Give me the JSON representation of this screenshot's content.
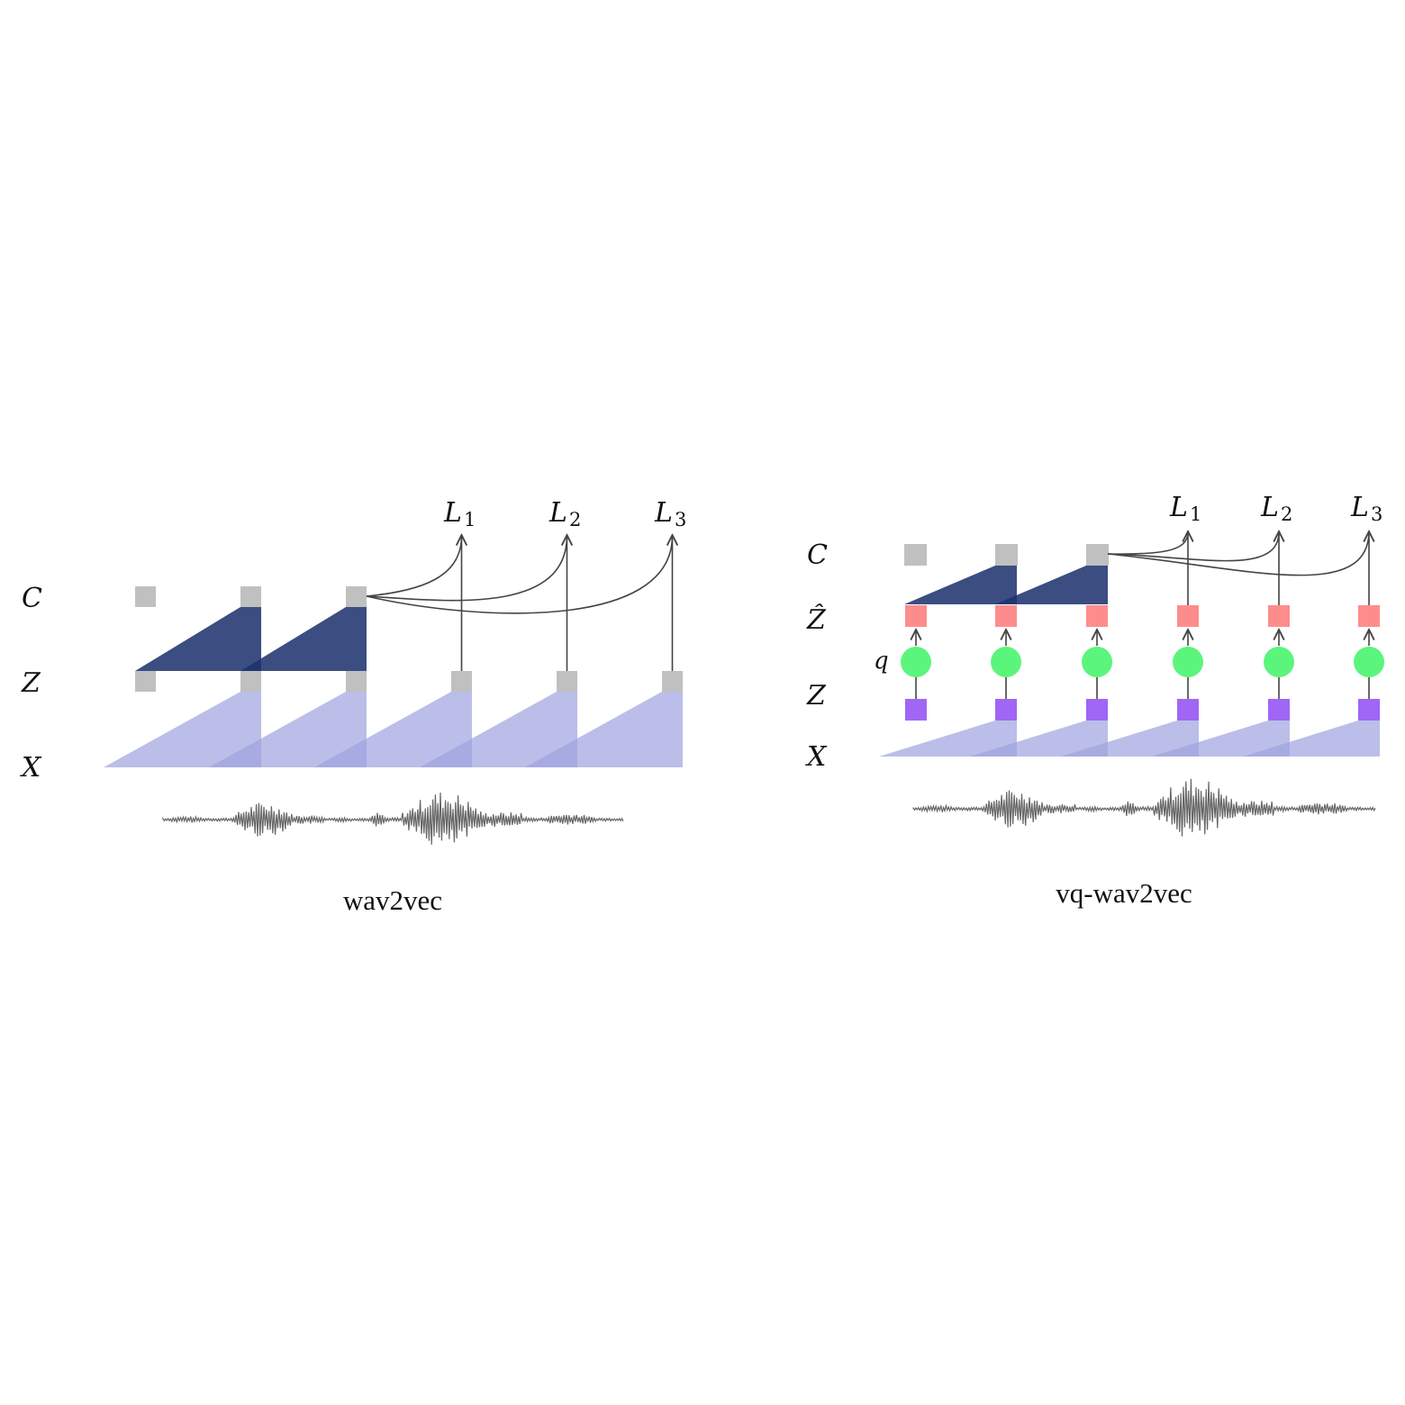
{
  "colors": {
    "context_node": "#c0c0c0",
    "latent_node": "#c0c0c0",
    "quantized_node": "#ff8c8c",
    "quantizer_node": "#5cf57c",
    "vq_latent_node": "#a066f5",
    "context_network": "#1e326e",
    "encoder": "#9ea2de",
    "waveform": "#666666",
    "connector": "#444444"
  },
  "left_panel": {
    "caption": "wav2vec",
    "rows": {
      "C": "C",
      "Z": "Z",
      "X": "X"
    },
    "losses": [
      {
        "symbol": "L",
        "sub": "1"
      },
      {
        "symbol": "L",
        "sub": "2"
      },
      {
        "symbol": "L",
        "sub": "3"
      }
    ]
  },
  "right_panel": {
    "caption": "vq-wav2vec",
    "rows": {
      "C": "C",
      "Zhat": "Ẑ",
      "q": "q",
      "Z": "Z",
      "X": "X"
    },
    "losses": [
      {
        "symbol": "L",
        "sub": "1"
      },
      {
        "symbol": "L",
        "sub": "2"
      },
      {
        "symbol": "L",
        "sub": "3"
      }
    ]
  }
}
